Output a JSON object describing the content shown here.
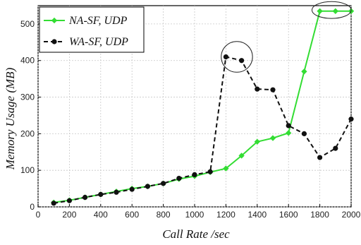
{
  "chart_data": {
    "type": "line",
    "title": "",
    "xlabel": "Call Rate /sec",
    "ylabel": "Memory Usage (MB)",
    "xlim": [
      0,
      2000
    ],
    "ylim": [
      0,
      550
    ],
    "xticks": [
      0,
      200,
      400,
      600,
      800,
      1000,
      1200,
      1400,
      1600,
      1800,
      2000
    ],
    "yticks": [
      0,
      100,
      200,
      300,
      400,
      500
    ],
    "grid": true,
    "legend_position": "top-left",
    "series": [
      {
        "name": "NA-SF, UDP",
        "color": "#33dd33",
        "line_style": "solid",
        "marker": "diamond",
        "x": [
          100,
          200,
          300,
          400,
          500,
          600,
          700,
          800,
          900,
          1000,
          1100,
          1200,
          1300,
          1400,
          1500,
          1600,
          1700,
          1800,
          1900,
          2000
        ],
        "y": [
          12,
          18,
          26,
          34,
          42,
          50,
          56,
          64,
          76,
          84,
          95,
          105,
          140,
          178,
          188,
          202,
          370,
          535,
          535,
          535
        ]
      },
      {
        "name": "WA-SF, UDP",
        "color": "#111111",
        "line_style": "dashed",
        "marker": "circle",
        "x": [
          100,
          200,
          300,
          400,
          500,
          600,
          700,
          800,
          900,
          1000,
          1100,
          1200,
          1300,
          1400,
          1500,
          1600,
          1700,
          1800,
          1900,
          2000
        ],
        "y": [
          10,
          17,
          26,
          34,
          40,
          48,
          56,
          64,
          78,
          88,
          96,
          410,
          400,
          322,
          320,
          222,
          200,
          135,
          160,
          240
        ]
      }
    ],
    "annotations": [
      {
        "type": "ellipse",
        "center_x": 1270,
        "center_y": 410,
        "radius_x": 100,
        "radius_y": 42
      },
      {
        "type": "ellipse",
        "center_x": 1875,
        "center_y": 538,
        "radius_x": 125,
        "radius_y": 23
      }
    ]
  }
}
